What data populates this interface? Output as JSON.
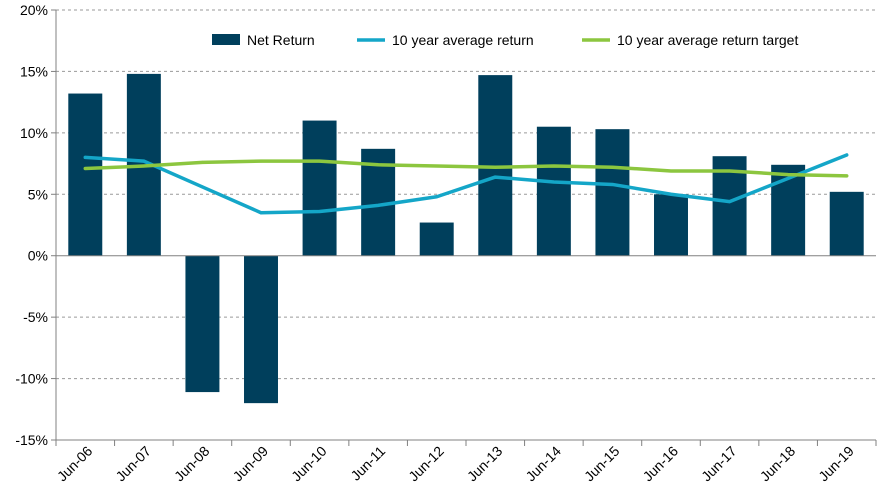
{
  "chart_data": {
    "type": "bar",
    "categories": [
      "Jun-06",
      "Jun-07",
      "Jun-08",
      "Jun-09",
      "Jun-10",
      "Jun-11",
      "Jun-12",
      "Jun-13",
      "Jun-14",
      "Jun-15",
      "Jun-16",
      "Jun-17",
      "Jun-18",
      "Jun-19"
    ],
    "series": [
      {
        "name": "Net Return",
        "type": "bar",
        "color": "#003f5c",
        "values": [
          13.2,
          14.8,
          -11.1,
          -12.0,
          11.0,
          8.7,
          2.7,
          14.7,
          10.5,
          10.3,
          5.0,
          8.1,
          7.4,
          5.2
        ]
      },
      {
        "name": "10 year average return",
        "type": "line",
        "color": "#14a6c8",
        "values": [
          8.0,
          7.7,
          5.6,
          3.5,
          3.6,
          4.1,
          4.8,
          6.4,
          6.0,
          5.8,
          5.0,
          4.4,
          6.3,
          8.2
        ]
      },
      {
        "name": "10 year average return target",
        "type": "line",
        "color": "#8cc63f",
        "values": [
          7.1,
          7.3,
          7.6,
          7.7,
          7.7,
          7.4,
          7.3,
          7.2,
          7.3,
          7.2,
          6.9,
          6.9,
          6.6,
          6.5
        ]
      }
    ],
    "ylim": [
      -15,
      20
    ],
    "yticks": [
      -15,
      -10,
      -5,
      0,
      5,
      10,
      15,
      20
    ],
    "ytick_labels": [
      "-15%",
      "-10%",
      "-5%",
      "0%",
      "5%",
      "10%",
      "15%",
      "20%"
    ],
    "grid": "horizontal-dashed",
    "legend_position": "top-center",
    "title": "",
    "xlabel": "",
    "ylabel": ""
  }
}
